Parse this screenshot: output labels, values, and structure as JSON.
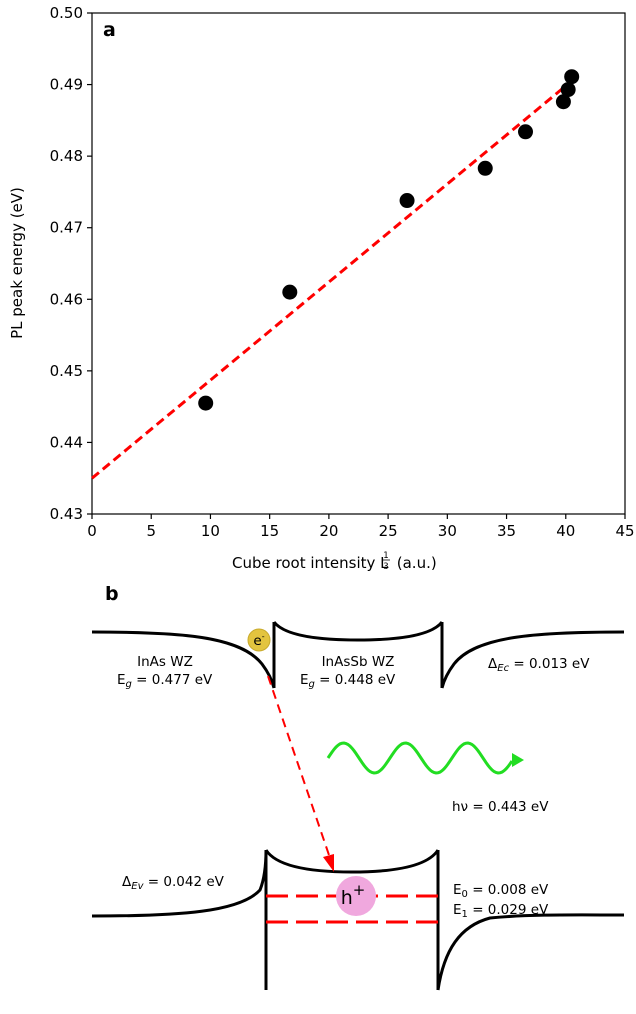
{
  "panel_a_label": "a",
  "panel_b_label": "b",
  "chart_data": {
    "type": "scatter",
    "xlabel_main": "Cube root intensity L",
    "xlabel_sup_num": "1",
    "xlabel_sup_den": "3",
    "xlabel_units": " (a.u.)",
    "ylabel": "PL peak energy (eV)",
    "xlim": [
      0,
      45
    ],
    "ylim": [
      0.43,
      0.5
    ],
    "xticks": [
      "0",
      "5",
      "10",
      "15",
      "20",
      "25",
      "30",
      "35",
      "40",
      "45"
    ],
    "yticks": [
      "0.43",
      "0.44",
      "0.45",
      "0.46",
      "0.47",
      "0.48",
      "0.49",
      "0.50"
    ],
    "grid": false,
    "series": [
      {
        "marker_color": "#000000",
        "points": [
          {
            "x": 9.6,
            "y": 0.4455
          },
          {
            "x": 16.7,
            "y": 0.461
          },
          {
            "x": 26.6,
            "y": 0.4738
          },
          {
            "x": 33.2,
            "y": 0.4783
          },
          {
            "x": 36.6,
            "y": 0.4834
          },
          {
            "x": 39.8,
            "y": 0.4876
          },
          {
            "x": 40.2,
            "y": 0.4893
          },
          {
            "x": 40.5,
            "y": 0.4911
          }
        ]
      }
    ],
    "fit_line": {
      "color": "#ff0000",
      "style": "dashed",
      "x": [
        0,
        40.5
      ],
      "y": [
        0.435,
        0.4905
      ]
    }
  },
  "diagram": {
    "electron_label": "e",
    "electron_sup": "-",
    "hole_label": "h",
    "hole_sup": "+",
    "inas_name": "InAs WZ",
    "inas_eg_prefix": "E",
    "inas_eg_sub": "g",
    "inas_eg_value": " = 0.477 eV",
    "inassb_name": "InAsSb WZ",
    "inassb_eg_prefix": "E",
    "inassb_eg_sub": "g",
    "inassb_eg_value": " = 0.448 eV",
    "dec_prefix": "Δ",
    "dec_sub": "Ec",
    "dec_value": " = 0.013 eV",
    "dev_prefix": "Δ",
    "dev_sub": "Ev",
    "dev_value": " = 0.042 eV",
    "photon_label": "hν = 0.443 eV",
    "e0_prefix": "E",
    "e0_sub": "0",
    "e0_value": " = 0.008 eV",
    "e1_prefix": "E",
    "e1_sub": "1",
    "e1_value": " = 0.029 eV",
    "colors": {
      "electron": "#e3c43f",
      "hole": "#f0a8de",
      "photon": "#22dd22",
      "transition": "#ff0000"
    }
  }
}
